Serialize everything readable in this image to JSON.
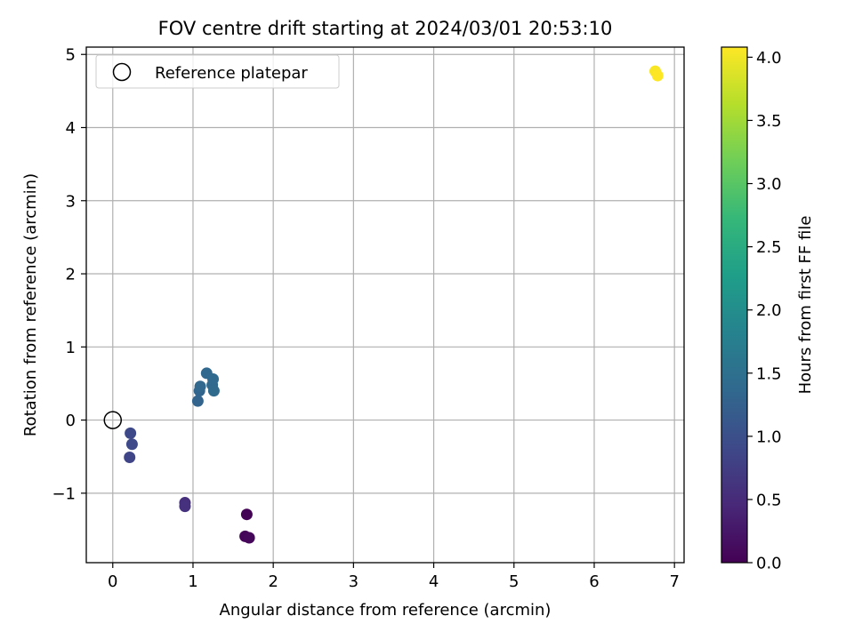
{
  "chart_data": {
    "type": "scatter",
    "title": "FOV centre drift starting at 2024/03/01 20:53:10",
    "xlabel": "Angular distance from reference (arcmin)",
    "ylabel": "Rotation from reference (arcmin)",
    "xlim": [
      -0.33,
      7.12
    ],
    "ylim": [
      -1.95,
      5.1
    ],
    "xticks": [
      0,
      1,
      2,
      3,
      4,
      5,
      6,
      7
    ],
    "xtick_labels": [
      "0",
      "1",
      "2",
      "3",
      "4",
      "5",
      "6",
      "7"
    ],
    "yticks": [
      -1,
      0,
      1,
      2,
      3,
      4,
      5
    ],
    "ytick_labels": [
      "−1",
      "0",
      "1",
      "2",
      "3",
      "4",
      "5"
    ],
    "grid": true,
    "legend": {
      "placement": "upper-left",
      "entries": [
        "Reference platepar"
      ]
    },
    "reference_point": {
      "name": "Reference platepar",
      "x": 0,
      "y": 0
    },
    "points": [
      {
        "x": 1.67,
        "y": -1.29,
        "hours": 0.03
      },
      {
        "x": 1.65,
        "y": -1.59,
        "hours": 0.05
      },
      {
        "x": 1.7,
        "y": -1.61,
        "hours": 0.07
      },
      {
        "x": 0.9,
        "y": -1.13,
        "hours": 0.55
      },
      {
        "x": 0.9,
        "y": -1.18,
        "hours": 0.58
      },
      {
        "x": 0.21,
        "y": -0.51,
        "hours": 0.85
      },
      {
        "x": 0.22,
        "y": -0.18,
        "hours": 0.9
      },
      {
        "x": 0.24,
        "y": -0.33,
        "hours": 0.92
      },
      {
        "x": 1.06,
        "y": 0.26,
        "hours": 1.3
      },
      {
        "x": 1.08,
        "y": 0.4,
        "hours": 1.32
      },
      {
        "x": 1.09,
        "y": 0.46,
        "hours": 1.34
      },
      {
        "x": 1.17,
        "y": 0.64,
        "hours": 1.36
      },
      {
        "x": 1.24,
        "y": 0.48,
        "hours": 1.38
      },
      {
        "x": 1.25,
        "y": 0.56,
        "hours": 1.4
      },
      {
        "x": 1.26,
        "y": 0.4,
        "hours": 1.42
      },
      {
        "x": 6.76,
        "y": 4.77,
        "hours": 4.05
      },
      {
        "x": 6.79,
        "y": 4.71,
        "hours": 4.08
      }
    ],
    "colorbar": {
      "label": "Hours from first FF file",
      "range": [
        0.0,
        4.08
      ],
      "ticks": [
        0.0,
        0.5,
        1.0,
        1.5,
        2.0,
        2.5,
        3.0,
        3.5,
        4.0
      ],
      "tick_labels": [
        "0.0",
        "0.5",
        "1.0",
        "1.5",
        "2.0",
        "2.5",
        "3.0",
        "3.5",
        "4.0"
      ],
      "colormap": "viridis",
      "colors": [
        "#440154",
        "#482878",
        "#3e4989",
        "#31688e",
        "#26828e",
        "#1f9e89",
        "#35b779",
        "#6ece58",
        "#b5de2b",
        "#fde725"
      ]
    }
  }
}
